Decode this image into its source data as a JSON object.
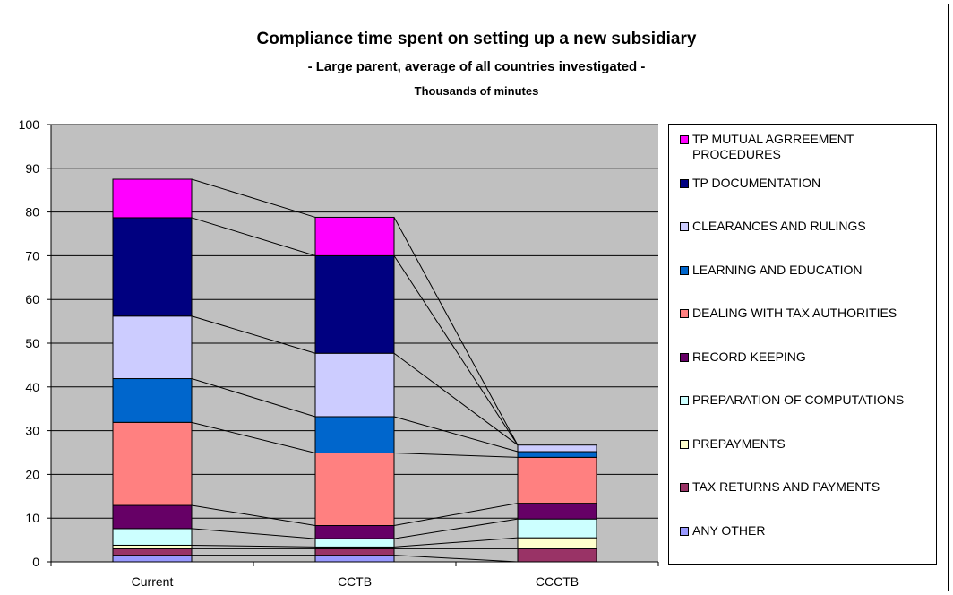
{
  "chart_data": {
    "type": "bar",
    "stacked": true,
    "title": "Compliance time spent on setting up a new subsidiary",
    "subtitle": "- Large parent, average of all countries investigated -",
    "unit_label": "Thousands of minutes",
    "categories": [
      "Current",
      "CCTB",
      "CCCTB"
    ],
    "ylim": [
      0,
      100
    ],
    "yticks": [
      0,
      10,
      20,
      30,
      40,
      50,
      60,
      70,
      80,
      90,
      100
    ],
    "grid": true,
    "legend_position": "right",
    "series_lines": true,
    "series": [
      {
        "name": "ANY OTHER",
        "color": "#9999ff",
        "values": [
          1.5,
          1.5,
          0
        ]
      },
      {
        "name": "TAX RETURNS AND PAYMENTS",
        "color": "#993366",
        "values": [
          1.5,
          1.5,
          3.0
        ]
      },
      {
        "name": "PREPAYMENTS",
        "color": "#ffffcc",
        "values": [
          0.8,
          0.4,
          2.5
        ]
      },
      {
        "name": "PREPARATION OF COMPUTATIONS",
        "color": "#ccffff",
        "values": [
          3.8,
          1.9,
          4.3
        ]
      },
      {
        "name": "RECORD KEEPING",
        "color": "#660066",
        "values": [
          5.3,
          3.0,
          3.6
        ]
      },
      {
        "name": "DEALING WITH TAX AUTHORITIES",
        "color": "#ff8080",
        "values": [
          19.0,
          16.6,
          10.5
        ]
      },
      {
        "name": "LEARNING AND EDUCATION",
        "color": "#0066cc",
        "values": [
          10.0,
          8.3,
          1.3
        ]
      },
      {
        "name": "CLEARANCES AND RULINGS",
        "color": "#ccccff",
        "values": [
          14.3,
          14.5,
          1.5
        ]
      },
      {
        "name": "TP DOCUMENTATION",
        "color": "#000080",
        "values": [
          22.5,
          22.3,
          0
        ]
      },
      {
        "name": "TP MUTUAL AGRREEMENT PROCEDURES",
        "color": "#ff00ff",
        "values": [
          8.8,
          8.8,
          0
        ]
      }
    ]
  }
}
